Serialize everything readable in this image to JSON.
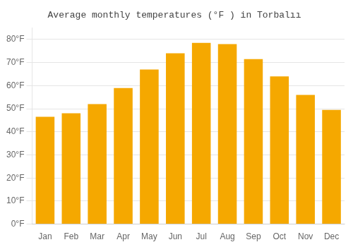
{
  "chart_data": {
    "type": "bar",
    "title": "Average monthly temperatures (°F ) in Torbalıı",
    "categories": [
      "Jan",
      "Feb",
      "Mar",
      "Apr",
      "May",
      "Jun",
      "Jul",
      "Aug",
      "Sep",
      "Oct",
      "Nov",
      "Dec"
    ],
    "values": [
      46.5,
      48.0,
      52.0,
      59.0,
      67.0,
      74.0,
      78.5,
      78.0,
      71.5,
      64.0,
      56.0,
      49.5
    ],
    "color": "#F5A800",
    "ylim": [
      0,
      85
    ],
    "yticks": [
      {
        "value": 0,
        "label": "0°F"
      },
      {
        "value": 10,
        "label": "10°F"
      },
      {
        "value": 20,
        "label": "20°F"
      },
      {
        "value": 30,
        "label": "30°F"
      },
      {
        "value": 40,
        "label": "40°F"
      },
      {
        "value": 50,
        "label": "50°F"
      },
      {
        "value": 60,
        "label": "60°F"
      },
      {
        "value": 70,
        "label": "70°F"
      },
      {
        "value": 80,
        "label": "80°F"
      }
    ],
    "grid": true
  }
}
